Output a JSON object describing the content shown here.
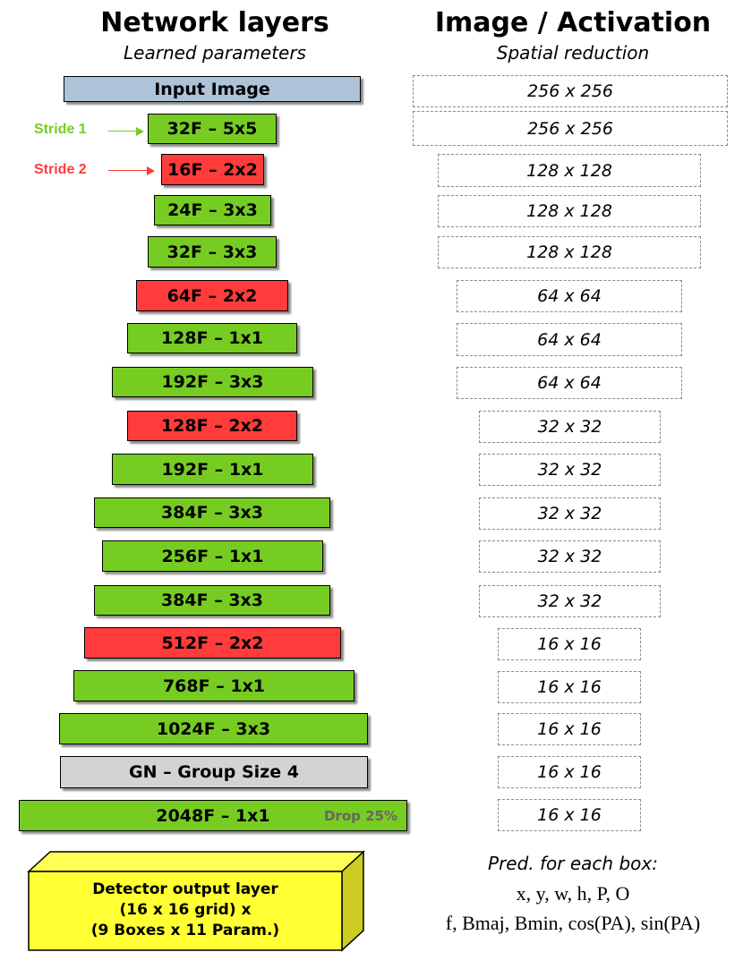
{
  "header": {
    "network_title": "Network layers",
    "network_subtitle": "Learned parameters",
    "activation_title": "Image / Activation",
    "activation_subtitle": "Spatial reduction"
  },
  "annotations": {
    "stride1": {
      "label": "Stride 1",
      "color": "#77cc22"
    },
    "stride2": {
      "label": "Stride 2",
      "color": "#ff3b3b"
    }
  },
  "colors": {
    "conv_stride1": "#77cc22",
    "conv_stride2": "#ff3b3b",
    "input": "#aec3d7",
    "group_norm": "#d3d3d3",
    "detector": "#ffff33"
  },
  "layers": [
    {
      "label": "Input Image",
      "kind": "input"
    },
    {
      "label": "32F – 5x5",
      "kind": "stride1"
    },
    {
      "label": "16F – 2x2",
      "kind": "stride2"
    },
    {
      "label": "24F – 3x3",
      "kind": "stride1"
    },
    {
      "label": "32F – 3x3",
      "kind": "stride1"
    },
    {
      "label": "64F – 2x2",
      "kind": "stride2"
    },
    {
      "label": "128F – 1x1",
      "kind": "stride1"
    },
    {
      "label": "192F – 3x3",
      "kind": "stride1"
    },
    {
      "label": "128F – 2x2",
      "kind": "stride2"
    },
    {
      "label": "192F – 1x1",
      "kind": "stride1"
    },
    {
      "label": "384F – 3x3",
      "kind": "stride1"
    },
    {
      "label": "256F – 1x1",
      "kind": "stride1"
    },
    {
      "label": "384F – 3x3",
      "kind": "stride1"
    },
    {
      "label": "512F – 2x2",
      "kind": "stride2"
    },
    {
      "label": "768F – 1x1",
      "kind": "stride1"
    },
    {
      "label": "1024F – 3x3",
      "kind": "stride1"
    },
    {
      "label": "GN – Group Size 4",
      "kind": "group_norm"
    },
    {
      "label": "2048F – 1x1",
      "kind": "stride1",
      "note": "Drop 25%"
    }
  ],
  "activations": [
    "256 x 256",
    "256 x 256",
    "128 x 128",
    "128 x 128",
    "128 x 128",
    "64 x 64",
    "64 x 64",
    "64 x 64",
    "32 x 32",
    "32 x 32",
    "32 x 32",
    "32 x 32",
    "32 x 32",
    "16 x 16",
    "16 x 16",
    "16 x 16",
    "16 x 16",
    "16 x 16"
  ],
  "detector": {
    "line1": "Detector output layer",
    "line2": "(16 x 16 grid) x",
    "line3": "(9 Boxes x 11 Param.)"
  },
  "prediction": {
    "title": "Pred. for each box:",
    "line1": "x, y, w, h, P, O",
    "line2": "f, Bmaj, Bmin, cos(PA), sin(PA)"
  }
}
